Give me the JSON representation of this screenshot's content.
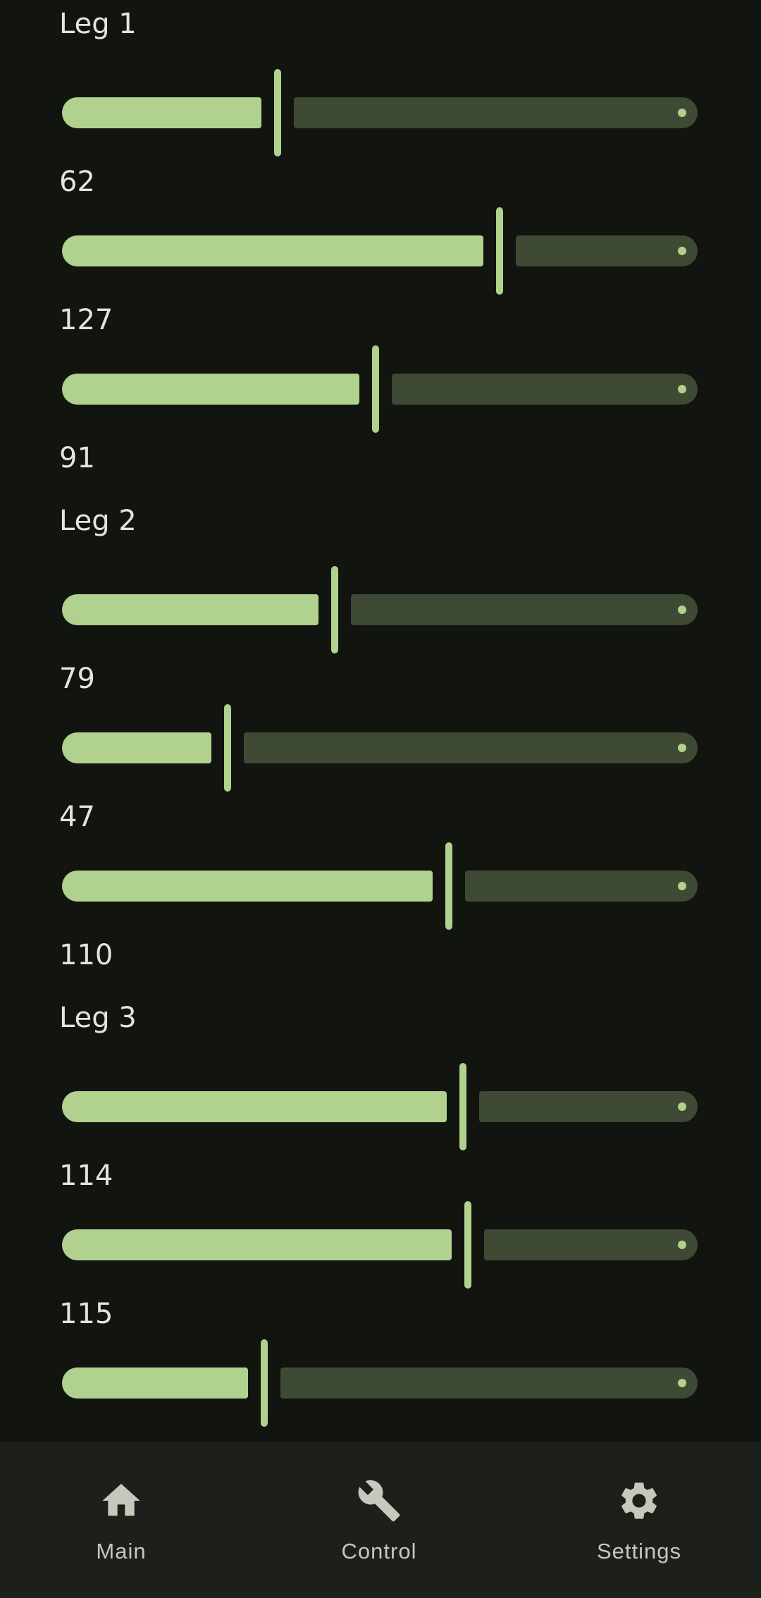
{
  "legs": [
    {
      "title": "Leg 1",
      "joints": [
        {
          "value": "62",
          "fraction": 0.333
        },
        {
          "value": "127",
          "fraction": 0.696
        },
        {
          "value": "91",
          "fraction": 0.493
        }
      ]
    },
    {
      "title": "Leg 2",
      "joints": [
        {
          "value": "79",
          "fraction": 0.426
        },
        {
          "value": "47",
          "fraction": 0.251
        },
        {
          "value": "110",
          "fraction": 0.613
        }
      ]
    },
    {
      "title": "Leg 3",
      "joints": [
        {
          "value": "114",
          "fraction": 0.636
        },
        {
          "value": "115",
          "fraction": 0.644
        },
        {
          "value": "",
          "fraction": 0.311
        }
      ]
    }
  ],
  "nav": {
    "items": [
      {
        "label": "Main",
        "icon": "home-icon"
      },
      {
        "label": "Control",
        "icon": "wrench-icon"
      },
      {
        "label": "Settings",
        "icon": "gear-icon"
      }
    ]
  },
  "colors": {
    "background": "#121410",
    "active_track": "#b1d18f",
    "inactive_track": "#3f4a34",
    "nav_background": "#1d1f1b",
    "nav_text": "#c5c8ba"
  }
}
